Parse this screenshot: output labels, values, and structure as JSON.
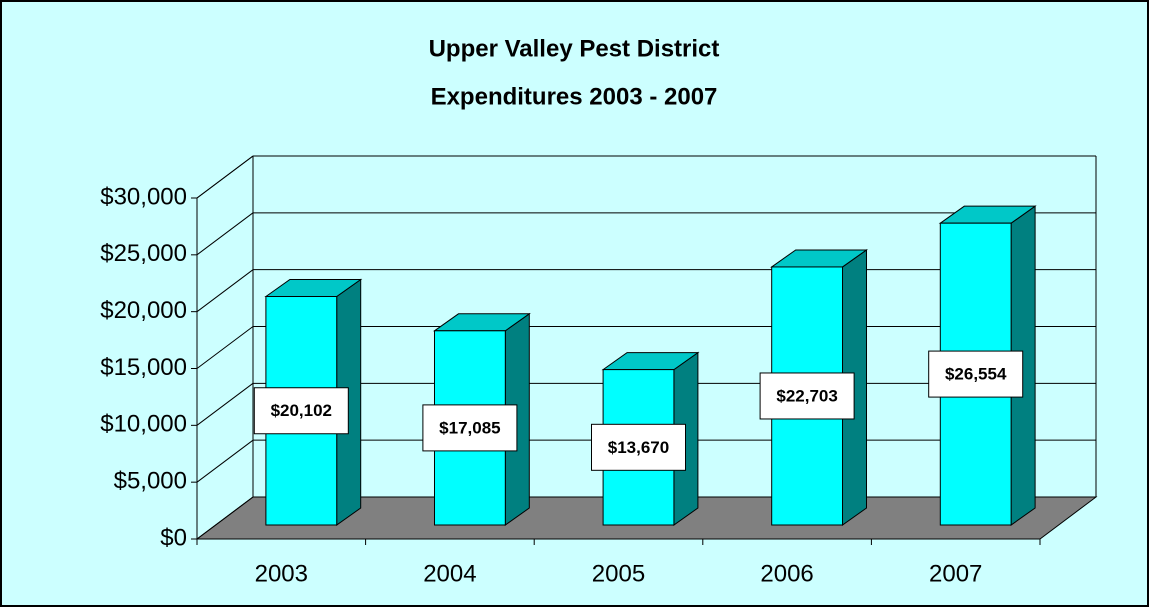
{
  "chart_data": {
    "type": "bar3d",
    "title": [
      "Upper Valley Pest District",
      "Expenditures 2003 - 2007"
    ],
    "categories": [
      "2003",
      "2004",
      "2005",
      "2006",
      "2007"
    ],
    "values": [
      20102,
      17085,
      13670,
      22703,
      26554
    ],
    "value_labels": [
      "$20,102",
      "$17,085",
      "$13,670",
      "$22,703",
      "$26,554"
    ],
    "color": "#00ffff",
    "ylim": [
      0,
      30000
    ],
    "yticks": [
      {
        "value": 0,
        "label": "$0"
      },
      {
        "value": 5000,
        "label": "$5,000"
      },
      {
        "value": 10000,
        "label": "$10,000"
      },
      {
        "value": 15000,
        "label": "$15,000"
      },
      {
        "value": 20000,
        "label": "$20,000"
      },
      {
        "value": 25000,
        "label": "$25,000"
      },
      {
        "value": 30000,
        "label": "$30,000"
      }
    ],
    "grid": true
  }
}
